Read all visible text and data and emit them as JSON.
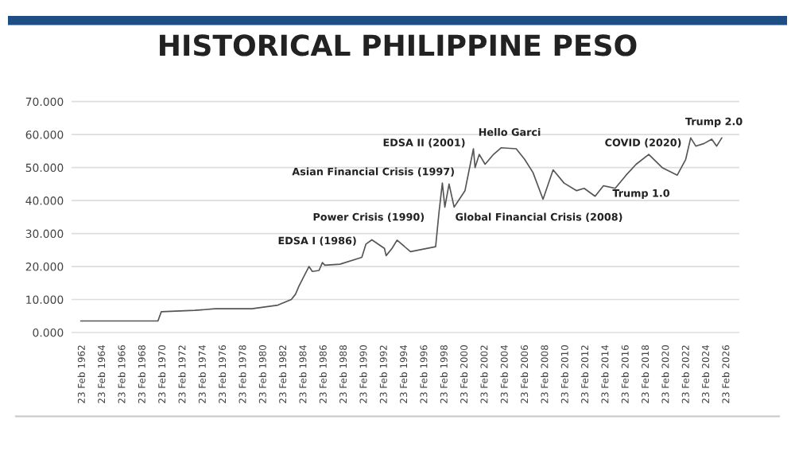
{
  "chart_data": {
    "type": "line",
    "title": "HISTORICAL PHILIPPINE PESO",
    "x": [
      "1962-01",
      "1969-09",
      "1970-01",
      "1973-05",
      "1975-05",
      "1979-01",
      "1981-08",
      "1982-12",
      "1983-05",
      "1983-09",
      "1984-04",
      "1984-09",
      "1985-01",
      "1985-09",
      "1986-01",
      "1986-04",
      "1987-10",
      "1989-12",
      "1990-05",
      "1990-12",
      "1992-03",
      "1992-05",
      "1992-12",
      "1993-06",
      "1994-10",
      "1997-04",
      "1997-08",
      "1997-12",
      "1998-03",
      "1998-08",
      "1999-02",
      "2000-03",
      "2001-01",
      "2001-03",
      "2001-08",
      "2002-03",
      "2003-01",
      "2003-10",
      "2005-04",
      "2006-02",
      "2006-12",
      "2007-12",
      "2008-12",
      "2010-01",
      "2011-04",
      "2012-01",
      "2013-02",
      "2013-12",
      "2015-02",
      "2016-03",
      "2017-03",
      "2018-06",
      "2019-10",
      "2021-04",
      "2022-02",
      "2022-08",
      "2023-02",
      "2023-12",
      "2024-09",
      "2025-03",
      "2025-09"
    ],
    "series": [
      {
        "color": "#555555",
        "values": [
          3.5,
          3.5,
          6.3,
          6.7,
          7.2,
          7.2,
          8.3,
          10,
          11.6,
          14,
          17.5,
          20,
          18.5,
          18.8,
          21.2,
          20.4,
          20.7,
          22.8,
          26.8,
          28.1,
          25.5,
          23.3,
          25.5,
          28,
          24.5,
          26,
          36.4,
          45.3,
          38,
          45,
          38,
          43,
          55.7,
          50,
          54,
          51,
          54,
          56,
          55.7,
          52.5,
          48.5,
          40.4,
          49.3,
          45.3,
          43,
          43.7,
          41.3,
          44.5,
          43.7,
          47.7,
          51,
          54,
          50,
          47.7,
          52.5,
          59,
          56.5,
          57.3,
          58.6,
          56.5,
          59
        ]
      }
    ],
    "ylim": [
      -1,
      71
    ],
    "yticks": [
      {
        "value": 0,
        "label": "0.000"
      },
      {
        "value": 10,
        "label": "10.000"
      },
      {
        "value": 20,
        "label": "20.000"
      },
      {
        "value": 30,
        "label": "30.000"
      },
      {
        "value": 40,
        "label": "40.000"
      },
      {
        "value": 50,
        "label": "50.000"
      },
      {
        "value": 60,
        "label": "60.000"
      },
      {
        "value": 70,
        "label": "70.000"
      }
    ],
    "xlim": [
      "1961-02",
      "2027-06"
    ],
    "xticks": [
      {
        "value": "1962-02-23",
        "label": "23 Feb 1962"
      },
      {
        "value": "1964-02-23",
        "label": "23 Feb 1964"
      },
      {
        "value": "1966-02-23",
        "label": "23 Feb 1966"
      },
      {
        "value": "1968-02-23",
        "label": "23 Feb 1968"
      },
      {
        "value": "1970-02-23",
        "label": "23 Feb 1970"
      },
      {
        "value": "1972-02-23",
        "label": "23 Feb 1972"
      },
      {
        "value": "1974-02-23",
        "label": "23 Feb 1974"
      },
      {
        "value": "1976-02-23",
        "label": "23 Feb 1976"
      },
      {
        "value": "1978-02-23",
        "label": "23 Feb 1978"
      },
      {
        "value": "1980-02-23",
        "label": "23 Feb 1980"
      },
      {
        "value": "1982-02-23",
        "label": "23 Feb 1982"
      },
      {
        "value": "1984-02-23",
        "label": "23 Feb 1984"
      },
      {
        "value": "1986-02-23",
        "label": "23 Feb 1986"
      },
      {
        "value": "1988-02-23",
        "label": "23 Feb 1988"
      },
      {
        "value": "1990-02-23",
        "label": "23 Feb 1990"
      },
      {
        "value": "1992-02-23",
        "label": "23 Feb 1992"
      },
      {
        "value": "1994-02-23",
        "label": "23 Feb 1994"
      },
      {
        "value": "1996-02-23",
        "label": "23 Feb 1996"
      },
      {
        "value": "1998-02-23",
        "label": "23 Feb 1998"
      },
      {
        "value": "2000-02-23",
        "label": "23 Feb 2000"
      },
      {
        "value": "2002-02-23",
        "label": "23 Feb 2002"
      },
      {
        "value": "2004-02-23",
        "label": "23 Feb 2004"
      },
      {
        "value": "2006-02-23",
        "label": "23 Feb 2006"
      },
      {
        "value": "2008-02-23",
        "label": "23 Feb 2008"
      },
      {
        "value": "2010-02-23",
        "label": "23 Feb 2010"
      },
      {
        "value": "2012-02-23",
        "label": "23 Feb 2012"
      },
      {
        "value": "2014-02-23",
        "label": "23 Feb 2014"
      },
      {
        "value": "2016-02-23",
        "label": "23 Feb 2016"
      },
      {
        "value": "2018-02-23",
        "label": "23 Feb 2018"
      },
      {
        "value": "2020-02-23",
        "label": "23 Feb 2020"
      },
      {
        "value": "2022-02-23",
        "label": "23 Feb 2022"
      },
      {
        "value": "2024-02-23",
        "label": "23 Feb 2024"
      },
      {
        "value": "2026-02-23",
        "label": "23 Feb 2026"
      }
    ],
    "grid": "y",
    "legend": false,
    "marker": "none",
    "line_style": "solid",
    "annotations": [
      "EDSA I (1986)",
      "Power Crisis (1990)",
      "Asian Financial Crisis (1997)",
      "EDSA II (2001)",
      "Hello Garci",
      "Global Financial Crisis (2008)",
      "COVID (2020)",
      "Trump 1.0",
      "Trump 2.0"
    ]
  }
}
